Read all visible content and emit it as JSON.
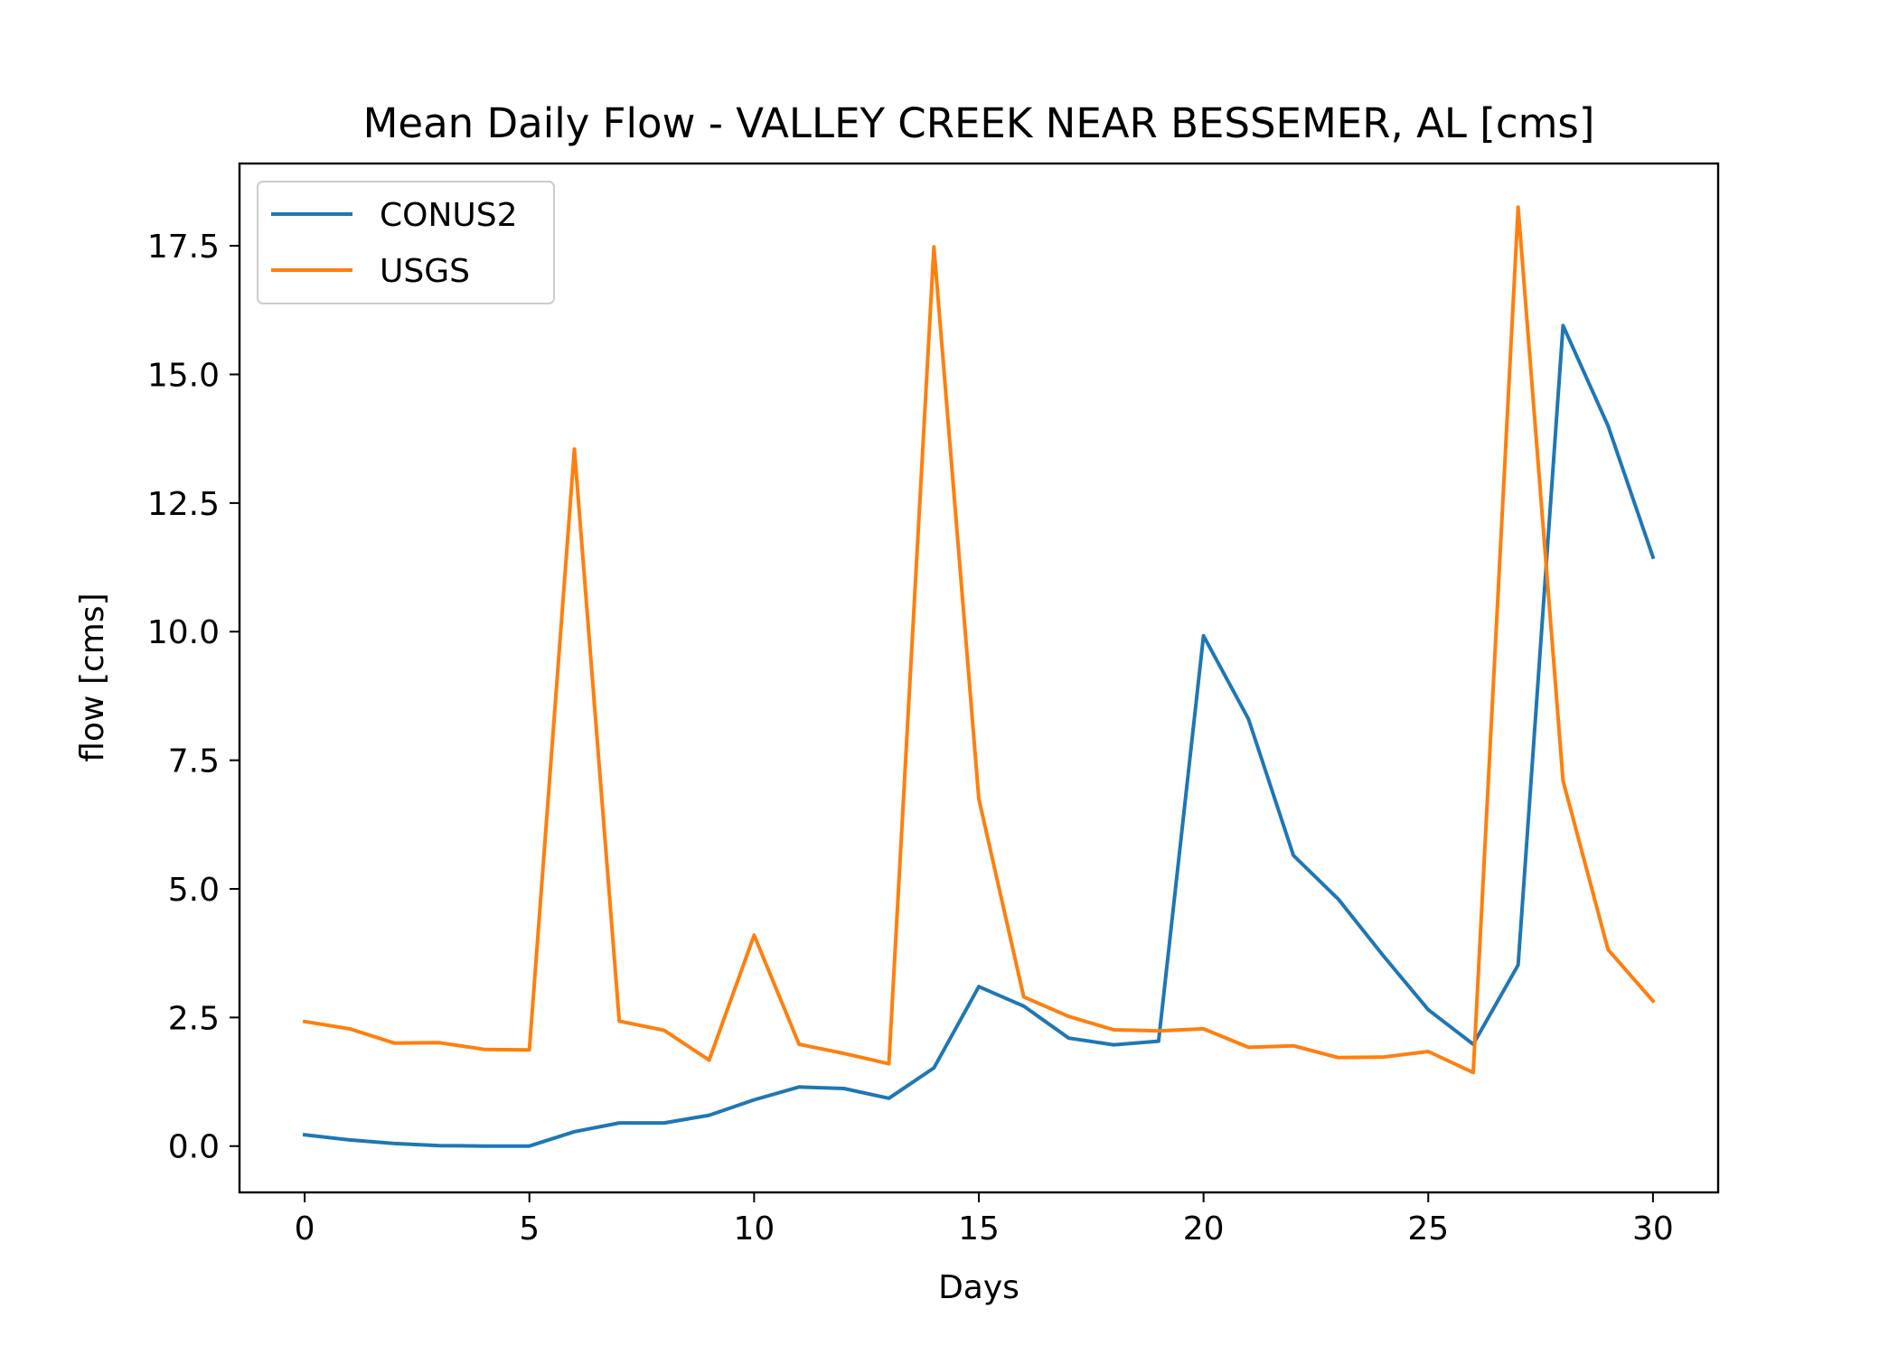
{
  "chart_data": {
    "type": "line",
    "title": "Mean Daily Flow - VALLEY CREEK NEAR BESSEMER, AL [cms]",
    "xlabel": "Days",
    "ylabel": "flow [cms]",
    "xlim": [
      -1.45,
      31.45
    ],
    "ylim": [
      -0.9,
      19.1
    ],
    "xticks": [
      0,
      5,
      10,
      15,
      20,
      25,
      30
    ],
    "xtick_labels": [
      "0",
      "5",
      "10",
      "15",
      "20",
      "25",
      "30"
    ],
    "yticks": [
      0,
      2.5,
      5,
      7.5,
      10,
      12.5,
      15,
      17.5
    ],
    "ytick_labels": [
      "0.0",
      "2.5",
      "5.0",
      "7.5",
      "10.0",
      "12.5",
      "15.0",
      "17.5"
    ],
    "grid": false,
    "legend_position": "top-left",
    "x": [
      0,
      1,
      2,
      3,
      4,
      5,
      6,
      7,
      8,
      9,
      10,
      11,
      12,
      13,
      14,
      15,
      16,
      17,
      18,
      19,
      20,
      21,
      22,
      23,
      24,
      25,
      26,
      27,
      28,
      29,
      30
    ],
    "series": [
      {
        "name": "CONUS2",
        "color": "#1f77b4",
        "values": [
          0.22,
          0.12,
          0.05,
          0.01,
          0.0,
          0.0,
          0.28,
          0.45,
          0.45,
          0.6,
          0.9,
          1.15,
          1.12,
          0.93,
          1.52,
          3.1,
          2.72,
          2.1,
          1.97,
          2.04,
          9.92,
          8.3,
          5.65,
          4.8,
          3.7,
          2.65,
          1.98,
          3.52,
          15.95,
          14.0,
          11.45
        ]
      },
      {
        "name": "USGS",
        "color": "#ff7f0e",
        "values": [
          2.42,
          2.28,
          2.0,
          2.01,
          1.88,
          1.87,
          13.55,
          2.43,
          2.25,
          1.67,
          4.1,
          1.98,
          1.8,
          1.6,
          17.48,
          6.75,
          2.9,
          2.52,
          2.26,
          2.24,
          2.28,
          1.92,
          1.95,
          1.72,
          1.73,
          1.84,
          1.43,
          18.25,
          7.1,
          3.82,
          2.82
        ]
      }
    ]
  }
}
